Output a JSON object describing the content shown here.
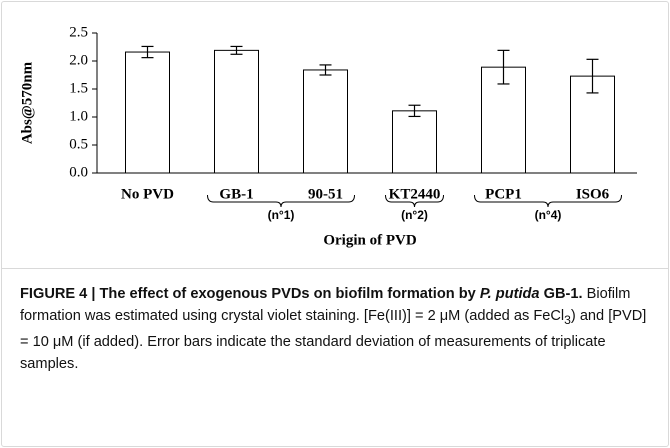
{
  "chart_data": {
    "type": "bar",
    "ylabel": "Abs@570nm",
    "xlabel": "Origin of PVD",
    "categories": [
      "No PVD",
      "GB-1",
      "90-51",
      "KT2440",
      "PCP1",
      "ISO6"
    ],
    "values": [
      2.16,
      2.19,
      1.84,
      1.11,
      1.89,
      1.73
    ],
    "errors": [
      0.1,
      0.07,
      0.09,
      0.1,
      0.3,
      0.3
    ],
    "color": "#ffffff",
    "ylim": [
      0,
      2.5
    ],
    "yticks": [
      {
        "value": 0,
        "label": "0.0"
      },
      0.5,
      {
        "value": 1,
        "label": "1.0"
      },
      1.5,
      {
        "value": 2,
        "label": "2.0"
      },
      2.5
    ],
    "groups": [
      {
        "label": "(n°1)",
        "start": 1,
        "end": 2
      },
      {
        "label": "(n°2)",
        "start": 3,
        "end": 3
      },
      {
        "label": "(n°4)",
        "start": 4,
        "end": 5
      }
    ]
  },
  "caption": {
    "label": "FIGURE 4 |",
    "title": "The effect of exogenous PVDs on biofilm formation by",
    "species": "P. putida",
    "strain": " GB-1.",
    "body": [
      "Biofilm formation was estimated using crystal violet staining. [Fe(III)] = 2 μM (added as FeCl",
      "3",
      ") and [PVD] = 10 μM (if added). Error bars indicate the standard deviation of measurements of triplicate samples."
    ]
  }
}
